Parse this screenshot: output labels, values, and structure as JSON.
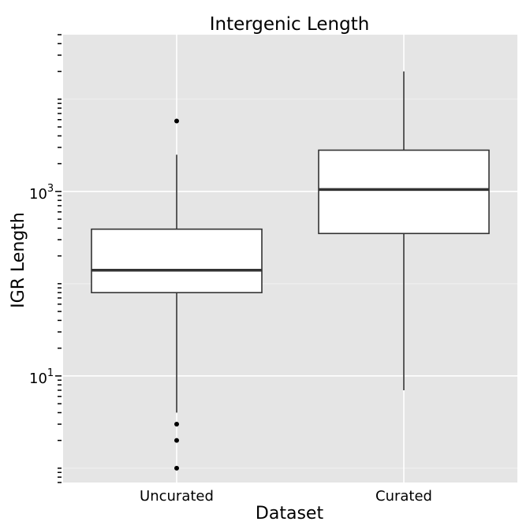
{
  "chart_data": {
    "type": "boxplot",
    "title": "Intergenic Length",
    "xlabel": "Dataset",
    "ylabel": "IGR Length",
    "y_scale": "log10",
    "ylim": [
      0.7,
      50000
    ],
    "categories": [
      "Uncurated",
      "Curated"
    ],
    "y_tick_labels": [
      {
        "base": "10",
        "exp": "1",
        "value": 10
      },
      {
        "base": "10",
        "exp": "3",
        "value": 1000
      }
    ],
    "boxes": [
      {
        "category": "Uncurated",
        "whisker_low": 4,
        "q1": 80,
        "median": 140,
        "q3": 390,
        "whisker_high": 2500,
        "outliers": [
          1,
          2,
          3,
          5800
        ]
      },
      {
        "category": "Curated",
        "whisker_low": 7,
        "q1": 350,
        "median": 1050,
        "q3": 2800,
        "whisker_high": 20000,
        "outliers": []
      }
    ],
    "grid": true,
    "legend": "none",
    "colors": {
      "panel_background": "#e5e5e5",
      "grid_major": "#ffffff",
      "grid_minor": "#f2f2f2",
      "box_fill": "#ffffff",
      "box_line": "#333333",
      "median_line": "#333333",
      "outlier": "#000000"
    }
  }
}
